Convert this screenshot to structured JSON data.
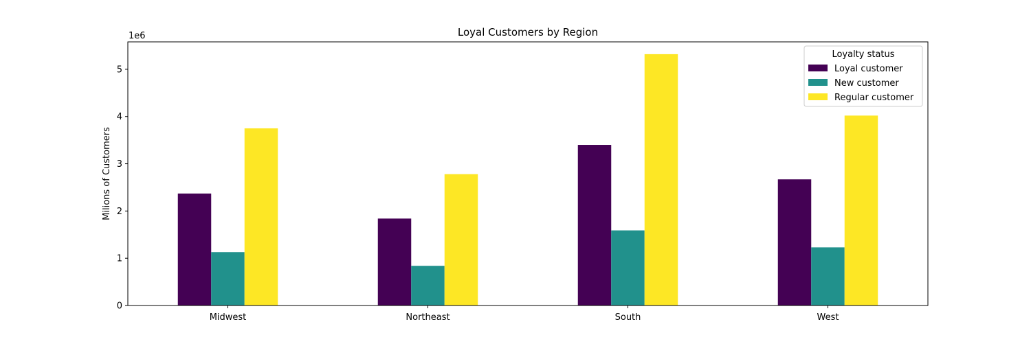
{
  "chart_data": {
    "type": "bar",
    "title": "Loyal Customers by Region",
    "xlabel": "",
    "ylabel": "Milions of Customers",
    "y_offset_label": "1e6",
    "categories": [
      "Midwest",
      "Northeast",
      "South",
      "West"
    ],
    "series": [
      {
        "name": "Loyal customer",
        "color": "#440154",
        "values": [
          2370000,
          1840000,
          3400000,
          2670000
        ]
      },
      {
        "name": "New customer",
        "color": "#21918c",
        "values": [
          1130000,
          840000,
          1590000,
          1230000
        ]
      },
      {
        "name": "Regular customer",
        "color": "#fde725",
        "values": [
          3750000,
          2780000,
          5320000,
          4020000
        ]
      }
    ],
    "ylim": [
      0,
      5580000
    ],
    "yticks": [
      0,
      1000000,
      2000000,
      3000000,
      4000000,
      5000000
    ],
    "ytick_labels": [
      "0",
      "1",
      "2",
      "3",
      "4",
      "5"
    ],
    "grid": false,
    "legend": {
      "title": "Loyalty status",
      "placement": "top-right"
    }
  }
}
